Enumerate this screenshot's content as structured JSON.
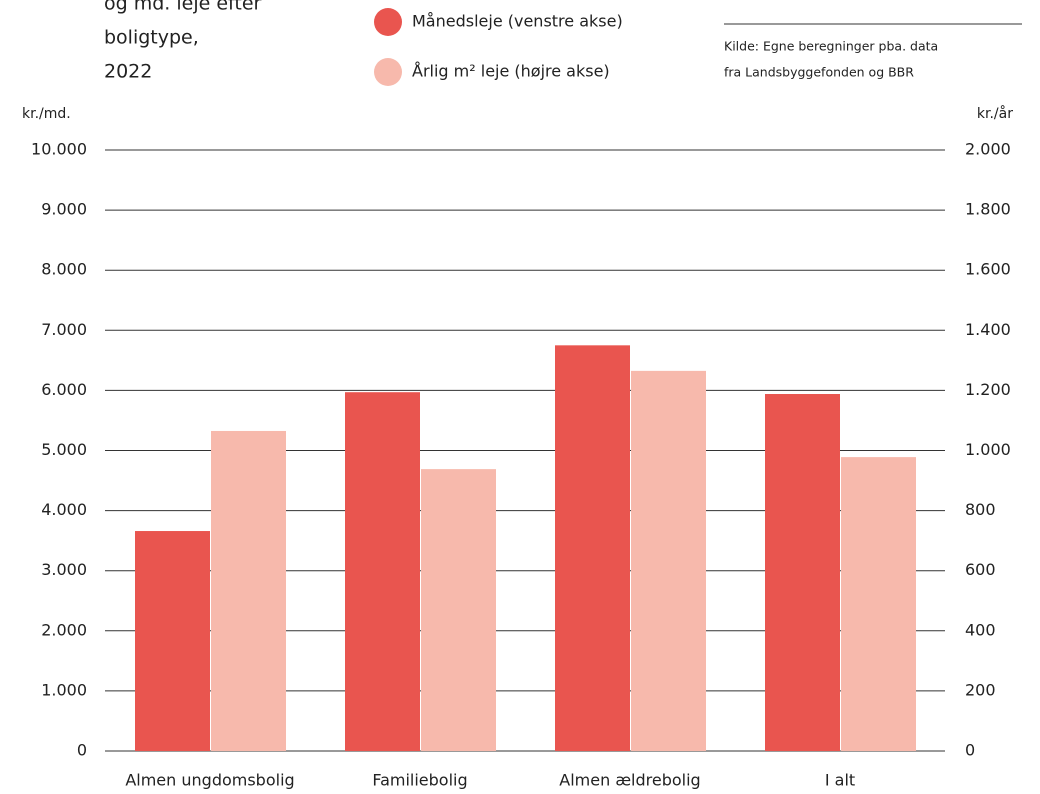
{
  "chart_data": {
    "type": "bar",
    "title_lines": [
      "og md. leje efter",
      "boligtype,",
      "2022"
    ],
    "source_lines": [
      "Kilde: Egne beregninger pba. data",
      "fra Landsbyggefonden og BBR"
    ],
    "ylabel": "kr./md.",
    "y2label": "kr./år",
    "categories": [
      "Almen ungdomsbolig",
      "Familiebolig",
      "Almen ældrebolig",
      "I alt"
    ],
    "series": [
      {
        "name": "Månedsleje (venstre akse)",
        "color": "#e9554f",
        "values": [
          3660,
          5970,
          6750,
          5940
        ]
      },
      {
        "name": "Årlig m² leje (højre akse)",
        "color": "#f7b9ac",
        "axis": "y2",
        "values": [
          1065,
          938,
          1265,
          978
        ]
      }
    ],
    "ylim": [
      0,
      10000
    ],
    "yticks": [
      0,
      {
        "value": 1000,
        "label": "1.000"
      },
      {
        "value": 2000,
        "label": "2.000"
      },
      {
        "value": 3000,
        "label": "3.000"
      },
      {
        "value": 4000,
        "label": "4.000"
      },
      {
        "value": 5000,
        "label": "5.000"
      },
      {
        "value": 6000,
        "label": "6.000"
      },
      {
        "value": 7000,
        "label": "7.000"
      },
      {
        "value": 8000,
        "label": "8.000"
      },
      {
        "value": 9000,
        "label": "9.000"
      },
      {
        "value": 10000,
        "label": "10.000"
      }
    ],
    "y2lim": [
      0,
      2000
    ],
    "y2ticks": [
      0,
      200,
      400,
      600,
      800,
      {
        "value": 1000,
        "label": "1.000"
      },
      {
        "value": 1200,
        "label": "1.200"
      },
      {
        "value": 1400,
        "label": "1.400"
      },
      {
        "value": 1600,
        "label": "1.600"
      },
      {
        "value": 1800,
        "label": "1.800"
      },
      {
        "value": 2000,
        "label": "2.000"
      }
    ],
    "grid": true
  }
}
